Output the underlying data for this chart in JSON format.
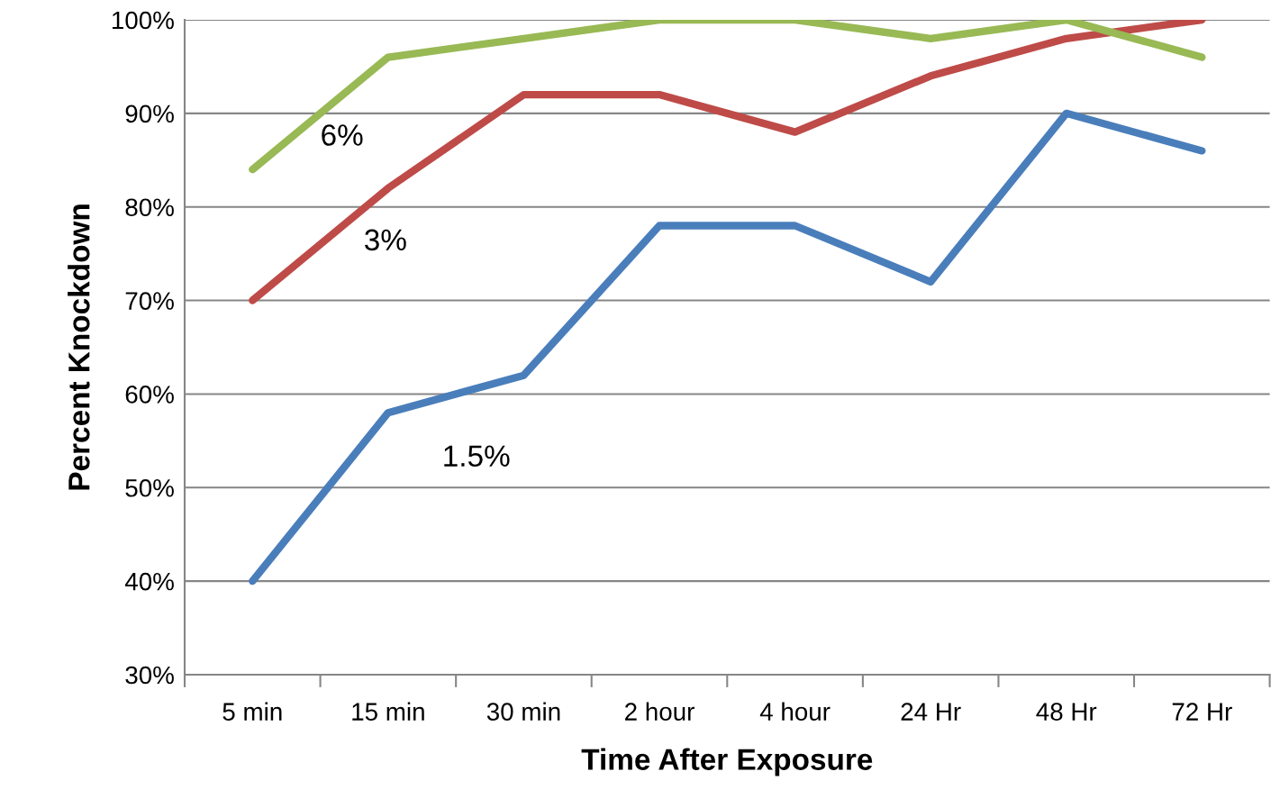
{
  "chart_data": {
    "type": "line",
    "xlabel": "Time After Exposure",
    "ylabel": "Percent Knockdown",
    "categories": [
      "5 min",
      "15 min",
      "30 min",
      "2 hour",
      "4 hour",
      "24 Hr",
      "48 Hr",
      "72 Hr"
    ],
    "series": [
      {
        "name": "1.5%",
        "color": "#4a7ebb",
        "values": [
          40,
          58,
          62,
          78,
          78,
          72,
          90,
          86
        ]
      },
      {
        "name": "3%",
        "color": "#be4b48",
        "values": [
          70,
          82,
          92,
          92,
          88,
          94,
          98,
          100
        ]
      },
      {
        "name": "6%",
        "color": "#98b954",
        "values": [
          84,
          96,
          98,
          100,
          100,
          98,
          100,
          96
        ]
      }
    ],
    "ylim": [
      30,
      100
    ],
    "yticks": [
      {
        "value": 30,
        "label": "30%"
      },
      {
        "value": 40,
        "label": "40%"
      },
      {
        "value": 50,
        "label": "50%"
      },
      {
        "value": 60,
        "label": "60%"
      },
      {
        "value": 70,
        "label": "70%"
      },
      {
        "value": 80,
        "label": "80%"
      },
      {
        "value": 90,
        "label": "90%"
      },
      {
        "value": 100,
        "label": "100%"
      }
    ],
    "grid": "y",
    "legend": false,
    "marker": "none",
    "line_style": "solid"
  }
}
